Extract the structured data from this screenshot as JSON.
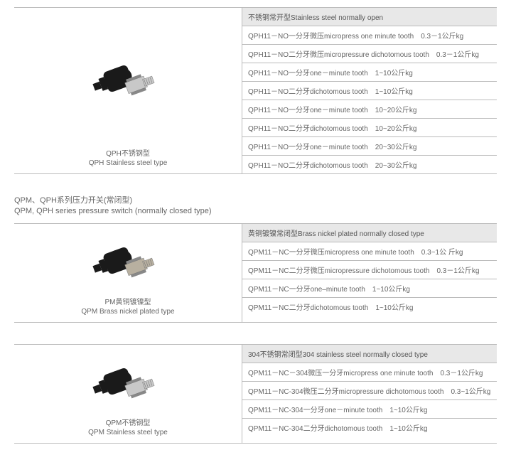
{
  "sections": [
    {
      "title_cn": "",
      "title_en": "",
      "show_title": false,
      "caption_cn": "QPH不锈钢型",
      "caption_en": "QPH Stainless steel type",
      "header": "不锈钢常开型Stainless steel normally open",
      "rows": [
        "QPH11－NO一分牙微压micropress one minute tooth　0.3－1公斤kg",
        "QPH11－NO二分牙微压micropressure dichotomous tooth　0.3－1公斤kg",
        "QPH11－NO一分牙one－minute tooth　1~10公斤kg",
        "QPH11－NO二分牙dichotomous tooth　1~10公斤kg",
        "QPH11－NO一分牙one－minute tooth　10~20公斤kg",
        "QPH11－NO二分牙dichotomous tooth　10~20公斤kg",
        "QPH11－NO一分牙one－minute tooth　20~30公斤kg",
        "QPH11－NO二分牙dichotomous tooth　20~30公斤kg"
      ],
      "body_style": "steel"
    },
    {
      "title_cn": "QPM、QPH系列压力开关(常闭型)",
      "title_en": "QPM, QPH series pressure switch (normally closed type)",
      "show_title": true,
      "caption_cn": "PM黄铜镀镍型",
      "caption_en": "QPM Brass nickel plated type",
      "header": "黄铜镀镍常闭型Brass nickel plated normally closed type",
      "rows": [
        "QPM11－NC一分牙微压micropress one minute tooth　0.3~1公 斤kg",
        "QPM11－NC二分牙微压micropressure dichotomous tooth　0.3－1公斤kg",
        "QPM11－NC一分牙one–minute tooth　1~10公斤kg",
        "QPM11－NC二分牙dichotomous tooth　1~10公斤kg"
      ],
      "body_style": "brass"
    },
    {
      "title_cn": "",
      "title_en": "",
      "show_title": false,
      "caption_cn": "QPM不锈钢型",
      "caption_en": "QPM Stainless steel type",
      "header": "304不锈钢常闭型304 stainless steel normally closed type",
      "rows": [
        "QPM11－NC－304微压一分牙micropress one minute tooth　0.3－1公斤kg",
        "QPM11－NC-304微压二分牙micropressure dichotomous tooth　0.3~1公斤kg",
        "QPM11－NC-304一分牙one－minute tooth　1~10公斤kg",
        "QPM11－NC-304二分牙dichotomous tooth　1~10公斤kg"
      ],
      "body_style": "steel"
    }
  ],
  "colors": {
    "cap": "#1a1a1a",
    "steel": "#c8c8c8",
    "brass": "#b8b0a0",
    "hex": "#888"
  }
}
